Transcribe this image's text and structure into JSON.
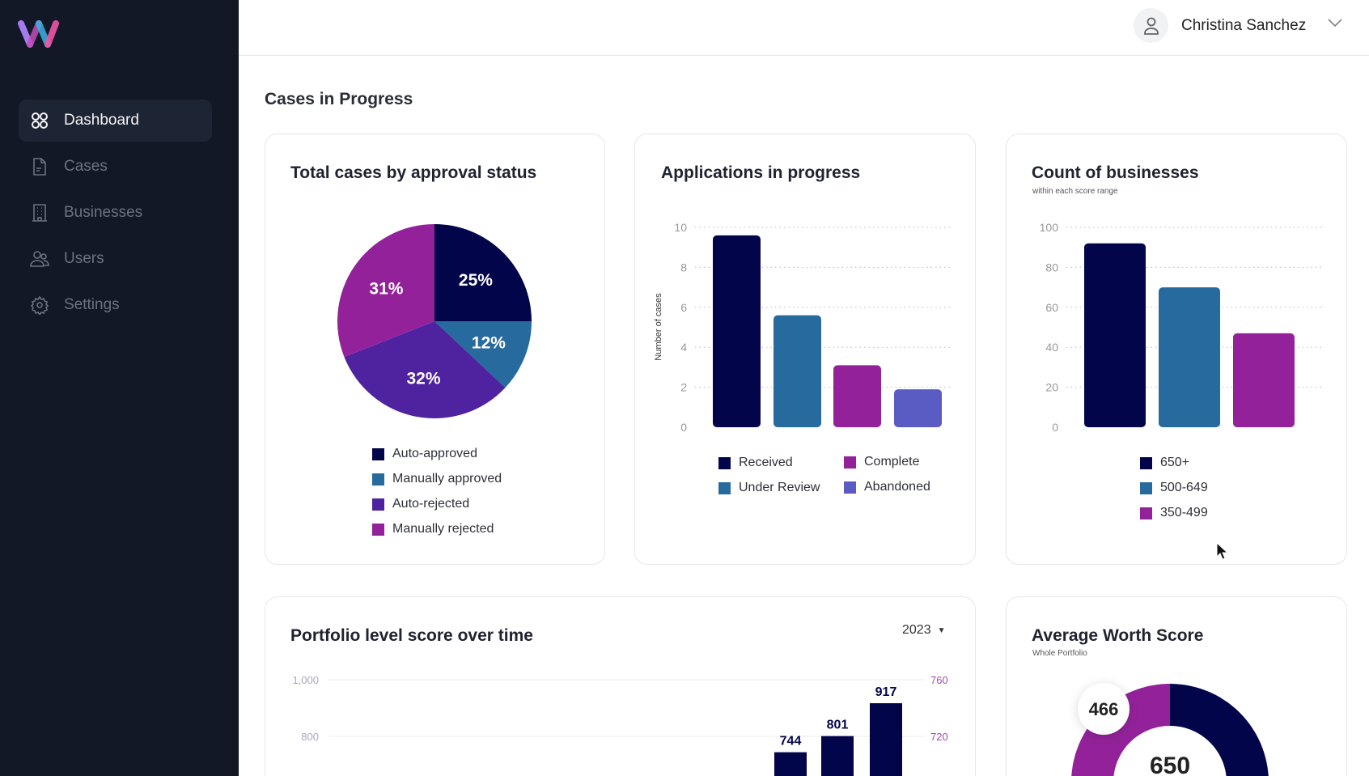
{
  "sidebar": {
    "items": [
      {
        "label": "Dashboard",
        "icon": "dashboard-grid-icon",
        "active": true
      },
      {
        "label": "Cases",
        "icon": "document-icon"
      },
      {
        "label": "Businesses",
        "icon": "building-icon"
      },
      {
        "label": "Users",
        "icon": "users-icon"
      },
      {
        "label": "Settings",
        "icon": "gear-icon"
      }
    ]
  },
  "header": {
    "user_name": "Christina Sanchez"
  },
  "page": {
    "title": "Cases in Progress"
  },
  "colors": {
    "navy": "#03054a",
    "blue": "#276a9e",
    "purple": "#4f22a0",
    "magenta": "#93229a",
    "violet": "#5b5bc4",
    "right_axis": "#a04bb0"
  },
  "chart_data": [
    {
      "type": "pie",
      "title": "Total cases by approval status",
      "categories": [
        "Auto-approved",
        "Manually approved",
        "Auto-rejected",
        "Manually rejected"
      ],
      "values": [
        25,
        12,
        32,
        31
      ],
      "labels": [
        "25%",
        "12%",
        "32%",
        "31%"
      ],
      "colors": [
        "#03054a",
        "#276a9e",
        "#4f22a0",
        "#93229a"
      ],
      "legend": "bottom"
    },
    {
      "type": "bar",
      "title": "Applications in progress",
      "ylabel": "Number of cases",
      "categories": [
        "Received",
        "Under Review",
        "Complete",
        "Abandoned"
      ],
      "values": [
        9.6,
        5.6,
        3.1,
        1.9
      ],
      "ylim": [
        0,
        10
      ],
      "yticks": [
        "0",
        "2",
        "4",
        "6",
        "8",
        "10"
      ],
      "colors": [
        "#03054a",
        "#276a9e",
        "#93229a",
        "#5b5bc4"
      ],
      "grid": true,
      "legend": "bottom"
    },
    {
      "type": "bar",
      "title": "Count of businesses",
      "subtitle": "within each score range",
      "categories": [
        "650+",
        "500-649",
        "350-499"
      ],
      "values": [
        92,
        70,
        47
      ],
      "ylim": [
        0,
        100
      ],
      "yticks": [
        "0",
        "20",
        "40",
        "60",
        "80",
        "100"
      ],
      "colors": [
        "#03054a",
        "#276a9e",
        "#93229a"
      ],
      "grid": true,
      "legend": "bottom"
    },
    {
      "type": "bar",
      "title": "Portfolio level score over time",
      "year_select": "2023",
      "values": [
        744,
        801,
        917
      ],
      "data_labels": [
        "744",
        "801",
        "917"
      ],
      "yticks_left": [
        "1,000",
        "800"
      ],
      "yticks_right": [
        "760",
        "720"
      ],
      "color": "#03054a"
    },
    {
      "type": "pie",
      "title": "Average Worth Score",
      "subtitle": "Whole Portfolio",
      "center_value": "650",
      "marker_value": "466"
    }
  ]
}
